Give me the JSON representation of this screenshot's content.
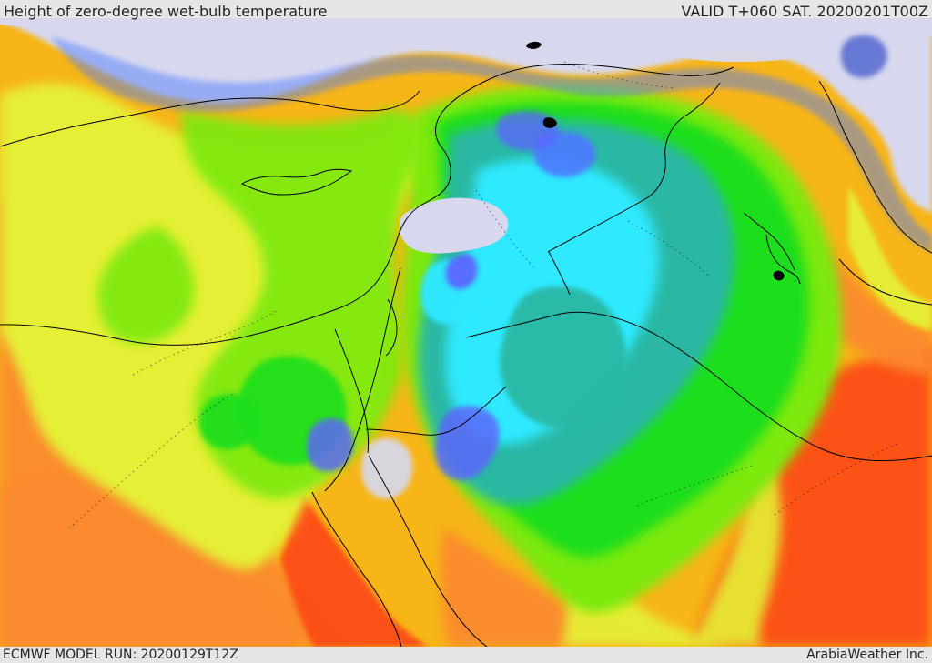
{
  "header": {
    "title": "Height of zero-degree wet-bulb temperature",
    "valid": "VALID T+060 SAT. 20200201T00Z"
  },
  "footer": {
    "model_run": "ECMWF MODEL RUN: 20200129T12Z",
    "credit": "ArabiaWeather Inc."
  },
  "map": {
    "type": "meteorological-field-map",
    "field": "zero-degree-wet-bulb-height",
    "projection": "regional",
    "land_border_color": "#000000",
    "sea_color_low": "#d7d8ee",
    "palette": [
      "#d7d8ee",
      "#2fe9ff",
      "#2ab8a4",
      "#1ade1f",
      "#7de90f",
      "#e5ef35",
      "#f7b517",
      "#fb8a2f",
      "#fd4e16"
    ]
  }
}
